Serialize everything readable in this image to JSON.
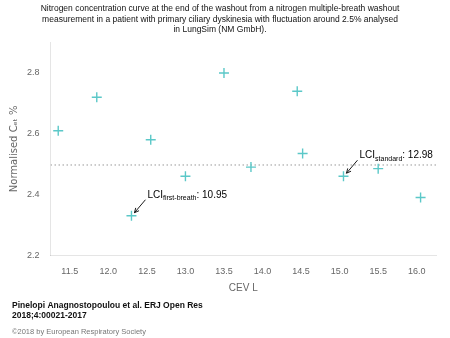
{
  "chart_data": {
    "type": "scatter",
    "title": [
      "Nitrogen concentration curve at the end of the washout from a nitrogen multiple-breath washout",
      "measurement in a patient with primary ciliary dyskinesia with fluctuation around 2.5% analysed",
      "in LungSim (NM GmbH)."
    ],
    "x_label": "CEV L",
    "y_label": "Normalised Cₑₜ %",
    "x": [
      11.35,
      11.85,
      12.3,
      12.55,
      13.0,
      13.5,
      13.85,
      14.45,
      14.52,
      15.05,
      15.5,
      16.05
    ],
    "values": [
      2.61,
      2.72,
      2.33,
      2.58,
      2.46,
      2.8,
      2.49,
      2.74,
      2.535,
      2.46,
      2.485,
      2.39
    ],
    "color": "#5bc8c8",
    "marker": "cross",
    "xlim": [
      11.25,
      16.25
    ],
    "ylim": [
      2.2,
      2.9
    ],
    "xticks": [
      11.5,
      {
        "value": 12,
        "label": "12.0"
      },
      12.5,
      {
        "value": 13,
        "label": "13.0"
      },
      13.5,
      {
        "value": 14,
        "label": "14.0"
      },
      14.5,
      {
        "value": 15,
        "label": "15.0"
      },
      15.5,
      {
        "value": 16,
        "label": "16.0"
      }
    ],
    "yticks": [
      2.2,
      2.4,
      2.6,
      2.8
    ],
    "grid": false,
    "reference_line": {
      "y": 2.497,
      "color": "#999999",
      "line_style": "dotted"
    },
    "annotations": [
      {
        "text": "LCIfirst-breath: 10.95",
        "subscript": "first-breath",
        "x": 12.3,
        "y": 2.33
      },
      {
        "text": "LCIstandard: 12.98",
        "subscript": "standard",
        "x": 15.05,
        "y": 2.46
      }
    ],
    "citation": [
      "Pinelopi Anagnostopoulou et al. ERJ Open Res",
      "2018;4:00021-2017"
    ],
    "copyright": "©2018 by European Respiratory Society"
  }
}
